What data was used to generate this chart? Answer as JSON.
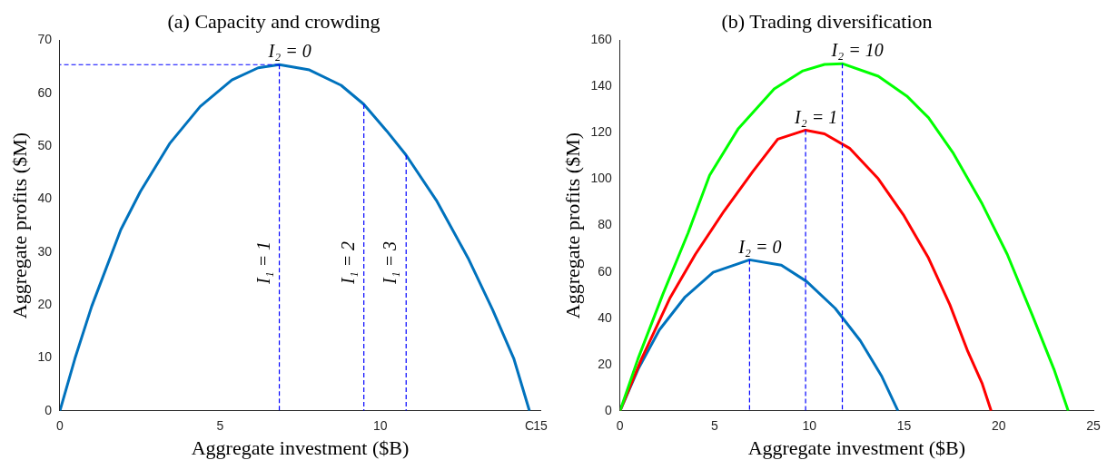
{
  "chart_data": [
    {
      "type": "line",
      "title": "(a) Capacity and crowding",
      "xlabel": "Aggregate investment ($B)",
      "ylabel": "Aggregate profits ($M)",
      "xlim": [
        0,
        15
      ],
      "xticks": [
        0,
        5,
        10,
        {
          "value": 14.66,
          "label": "C"
        },
        15
      ],
      "ylim": [
        0,
        70
      ],
      "yticks": [
        0,
        10,
        20,
        30,
        40,
        50,
        60,
        70
      ],
      "grid": false,
      "legend": false,
      "marker": "none",
      "series": [
        {
          "color": "#0072bd",
          "x": [
            0,
            0.47,
            0.99,
            1.9,
            2.51,
            3.44,
            4.38,
            5.37,
            6.19,
            6.85,
            7.79,
            8.78,
            9.49,
            10.2,
            10.81,
            11.75,
            12.74,
            13.51,
            14.17,
            14.66
          ],
          "values": [
            0,
            9.9,
            19.7,
            34.2,
            41.4,
            50.6,
            57.5,
            62.5,
            64.8,
            65.4,
            64.4,
            61.5,
            57.9,
            52.9,
            48.3,
            39.8,
            28.9,
            19.1,
            9.9,
            0
          ]
        },
        {
          "type": "line",
          "line_style": "dashed",
          "color": "#0000ff",
          "x": [
            6.85,
            0
          ],
          "values": [
            65.4,
            65.4
          ]
        },
        {
          "type": "line",
          "line_style": "dashed",
          "color": "#0000ff",
          "x": [
            6.85,
            6.85
          ],
          "values": [
            65.4,
            0
          ]
        },
        {
          "type": "line",
          "line_style": "dashed",
          "color": "#0000ff",
          "x": [
            9.49,
            9.49
          ],
          "values": [
            57.9,
            0
          ]
        },
        {
          "type": "line",
          "line_style": "dashed",
          "color": "#0000ff",
          "x": [
            10.81,
            10.81
          ],
          "values": [
            48.3,
            0
          ]
        }
      ],
      "annotations": [
        {
          "text": "I₂ = 0",
          "x": 6.85,
          "y": 65.4
        },
        {
          "text": "I₁ = 1",
          "x": 6.85,
          "y": 28
        },
        {
          "text": "I₁ = 2",
          "x": 9.49,
          "y": 28
        },
        {
          "text": "I₁ = 3",
          "x": 10.81,
          "y": 28
        }
      ]
    },
    {
      "type": "line",
      "title": "(b) Trading diversification",
      "xlabel": "Aggregate investment ($B)",
      "ylabel": "Aggregate profits ($M)",
      "xlim": [
        0,
        25
      ],
      "xticks": [
        0,
        5,
        10,
        15,
        20,
        25
      ],
      "ylim": [
        0,
        160
      ],
      "yticks": [
        0,
        20,
        40,
        60,
        80,
        100,
        120,
        140,
        160
      ],
      "grid": false,
      "legend": false,
      "marker": "none",
      "series": [
        {
          "color": "#00ff00",
          "x": [
            0,
            0.95,
            2.27,
            3.6,
            4.73,
            6.25,
            8.14,
            9.66,
            10.8,
            11.74,
            13.64,
            15.15,
            16.29,
            17.61,
            19.13,
            20.45,
            21.78,
            22.92,
            23.67
          ],
          "values": [
            0,
            22.5,
            50.5,
            76.9,
            101.7,
            121.9,
            139,
            146.8,
            149.6,
            149.9,
            144.5,
            135.9,
            126.6,
            111.1,
            89.3,
            67.6,
            41.2,
            17.9,
            0
          ]
        },
        {
          "color": "#ff0000",
          "x": [
            0,
            1.14,
            2.65,
            3.98,
            5.49,
            7.01,
            8.33,
            9.8,
            10.8,
            12.12,
            13.64,
            14.96,
            16.29,
            17.42,
            18.37,
            19.13,
            19.6
          ],
          "values": [
            0,
            22.5,
            48.9,
            67.6,
            86.2,
            103.3,
            117.3,
            121.2,
            119.6,
            113.4,
            100.2,
            84.7,
            66,
            45.8,
            25.6,
            11.7,
            0
          ]
        },
        {
          "color": "#0072bd",
          "x": [
            0,
            0.95,
            2.08,
            3.41,
            4.92,
            6.84,
            8.52,
            9.85,
            11.36,
            12.69,
            13.83,
            14.68
          ],
          "values": [
            0,
            17.9,
            35,
            48.9,
            59.8,
            65.2,
            62.9,
            55.9,
            44.3,
            30.3,
            14.8,
            0
          ]
        },
        {
          "type": "line",
          "line_style": "dashed",
          "color": "#0000ff",
          "x": [
            6.84,
            6.84
          ],
          "values": [
            65.2,
            0
          ]
        },
        {
          "type": "line",
          "line_style": "dashed",
          "color": "#0000ff",
          "x": [
            9.8,
            9.8
          ],
          "values": [
            121.2,
            0
          ]
        },
        {
          "type": "line",
          "line_style": "dashed",
          "color": "#0000ff",
          "x": [
            11.74,
            11.74
          ],
          "values": [
            149.9,
            0
          ]
        }
      ],
      "annotations": [
        {
          "text": "I₂ = 0",
          "x": 6.84,
          "y": 65.2
        },
        {
          "text": "I₂ = 1",
          "x": 9.8,
          "y": 121.2
        },
        {
          "text": "I₂ = 10",
          "x": 11.74,
          "y": 149.9
        }
      ]
    }
  ]
}
